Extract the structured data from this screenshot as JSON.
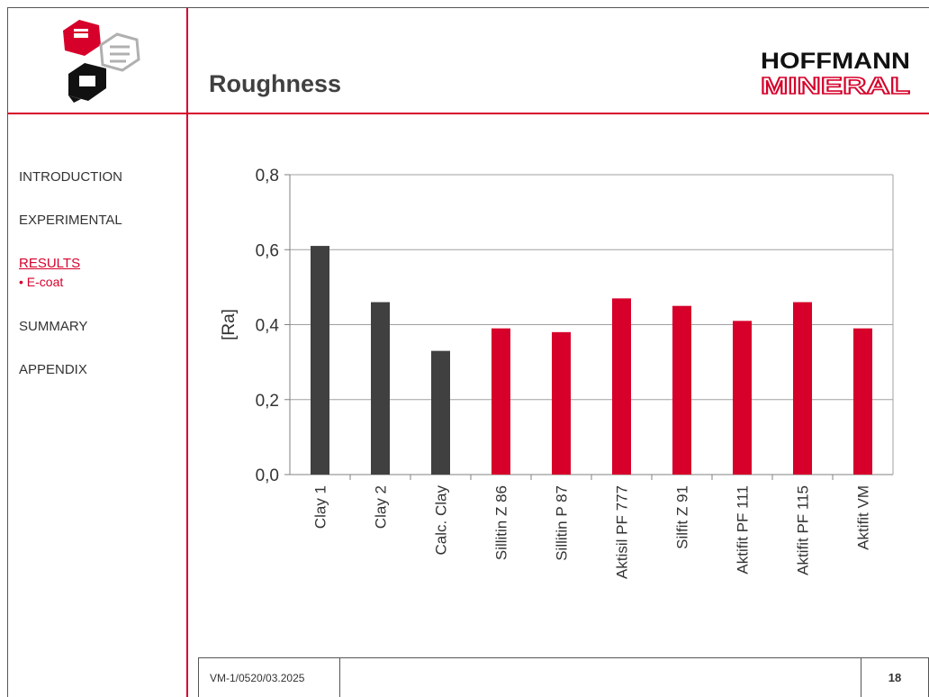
{
  "header": {
    "title": "Roughness",
    "brand_top": "HOFFMANN",
    "brand_bottom": "MINERAL"
  },
  "nav": {
    "items": [
      "INTRODUCTION",
      "EXPERIMENTAL",
      "RESULTS",
      "SUMMARY",
      "APPENDIX"
    ],
    "active_sub": "• E-coat"
  },
  "footer": {
    "code": "VM-1/0520/03.2025",
    "page": "18"
  },
  "colors": {
    "accent": "#d6002a",
    "dark_bar": "#404040",
    "red_bar": "#d6002a"
  },
  "chart_data": {
    "type": "bar",
    "categories": [
      "Clay 1",
      "Clay 2",
      "Calc. Clay",
      "Sillitin Z 86",
      "Sillitin P 87",
      "Aktisil PF 777",
      "Silfit Z 91",
      "Aktifit PF 111",
      "Aktifit PF 115",
      "Aktifit VM"
    ],
    "values": [
      0.61,
      0.46,
      0.33,
      0.39,
      0.38,
      0.47,
      0.45,
      0.41,
      0.46,
      0.39
    ],
    "bar_colors": [
      "#404040",
      "#404040",
      "#404040",
      "#d6002a",
      "#d6002a",
      "#d6002a",
      "#d6002a",
      "#d6002a",
      "#d6002a",
      "#d6002a"
    ],
    "ylabel": "[Ra]",
    "ylim": [
      0,
      0.8
    ],
    "yticks": [
      "0,0",
      "0,2",
      "0,4",
      "0,6",
      "0,8"
    ],
    "grid": true
  }
}
